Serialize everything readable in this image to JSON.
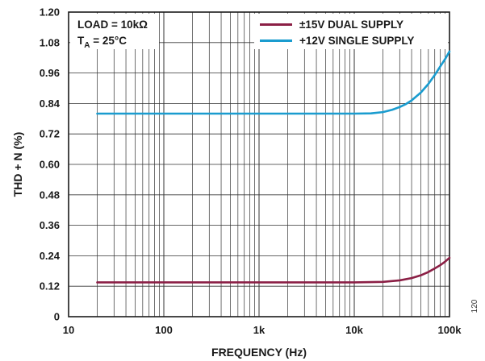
{
  "chart_data": {
    "type": "line",
    "xlabel": "FREQUENCY (Hz)",
    "ylabel": "THD + N (%)",
    "xscale": "log",
    "xlim": [
      10,
      100000
    ],
    "ylim": [
      0,
      1.2
    ],
    "x_ticks": [
      10,
      100,
      1000,
      10000,
      100000
    ],
    "x_tick_labels": [
      "10",
      "100",
      "1k",
      "10k",
      "100k"
    ],
    "y_ticks": [
      0,
      0.12,
      0.24,
      0.36,
      0.48,
      0.6,
      0.72,
      0.84,
      0.96,
      1.08,
      1.2
    ],
    "y_tick_labels": [
      "0",
      "0.12",
      "0.24",
      "0.36",
      "0.48",
      "0.60",
      "0.72",
      "0.84",
      "0.96",
      "1.08",
      "1.20"
    ],
    "grid": true,
    "legend_position": "top-right",
    "series": [
      {
        "name": "±15V DUAL SUPPLY",
        "color": "#8b1f45",
        "x": [
          20,
          100,
          1000,
          10000,
          20000,
          30000,
          40000,
          50000,
          60000,
          70000,
          80000,
          90000,
          100000
        ],
        "y": [
          0.135,
          0.135,
          0.135,
          0.135,
          0.137,
          0.143,
          0.152,
          0.163,
          0.176,
          0.19,
          0.203,
          0.217,
          0.232
        ]
      },
      {
        "name": "+12V SINGLE SUPPLY",
        "color": "#1a9ccf",
        "x": [
          20,
          100,
          1000,
          10000,
          15000,
          20000,
          25000,
          30000,
          35000,
          40000,
          50000,
          60000,
          70000,
          80000,
          90000,
          100000
        ],
        "y": [
          0.8,
          0.8,
          0.8,
          0.8,
          0.801,
          0.806,
          0.815,
          0.826,
          0.838,
          0.852,
          0.883,
          0.917,
          0.952,
          0.986,
          1.015,
          1.045
        ]
      }
    ],
    "annotations": [
      "LOAD = 10kΩ",
      "T",
      "A",
      " = 25°C"
    ],
    "figure_number": "120"
  }
}
